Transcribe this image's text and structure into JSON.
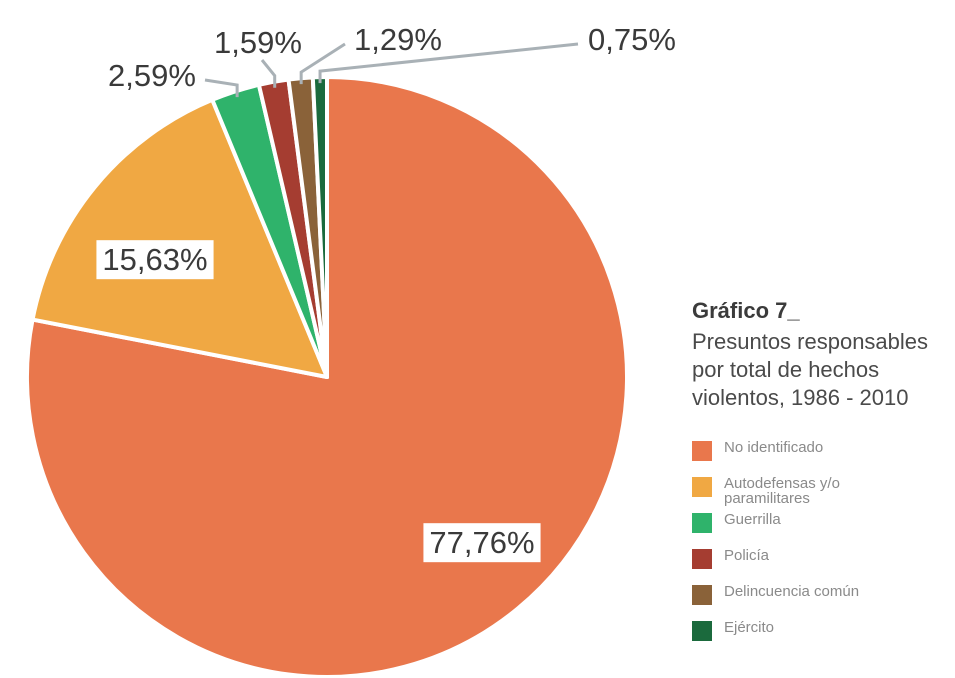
{
  "chart_data": {
    "type": "pie",
    "title": "Gráfico 7_",
    "subtitle": "Presuntos responsables por total de hechos violentos, 1986 - 2010",
    "categories": [
      "No identificado",
      "Autodefensas y/o paramilitares",
      "Guerrilla",
      "Policía",
      "Delincuencia común",
      "Ejército"
    ],
    "values": [
      77.76,
      15.63,
      2.59,
      1.59,
      1.29,
      0.75
    ],
    "value_labels": [
      "77,76%",
      "15,63%",
      "2,59%",
      "1,59%",
      "1,29%",
      "0,75%"
    ],
    "colors": [
      "#e9774c",
      "#f0a843",
      "#2fb36b",
      "#a53d31",
      "#8a6239",
      "#1b6a3d"
    ]
  }
}
